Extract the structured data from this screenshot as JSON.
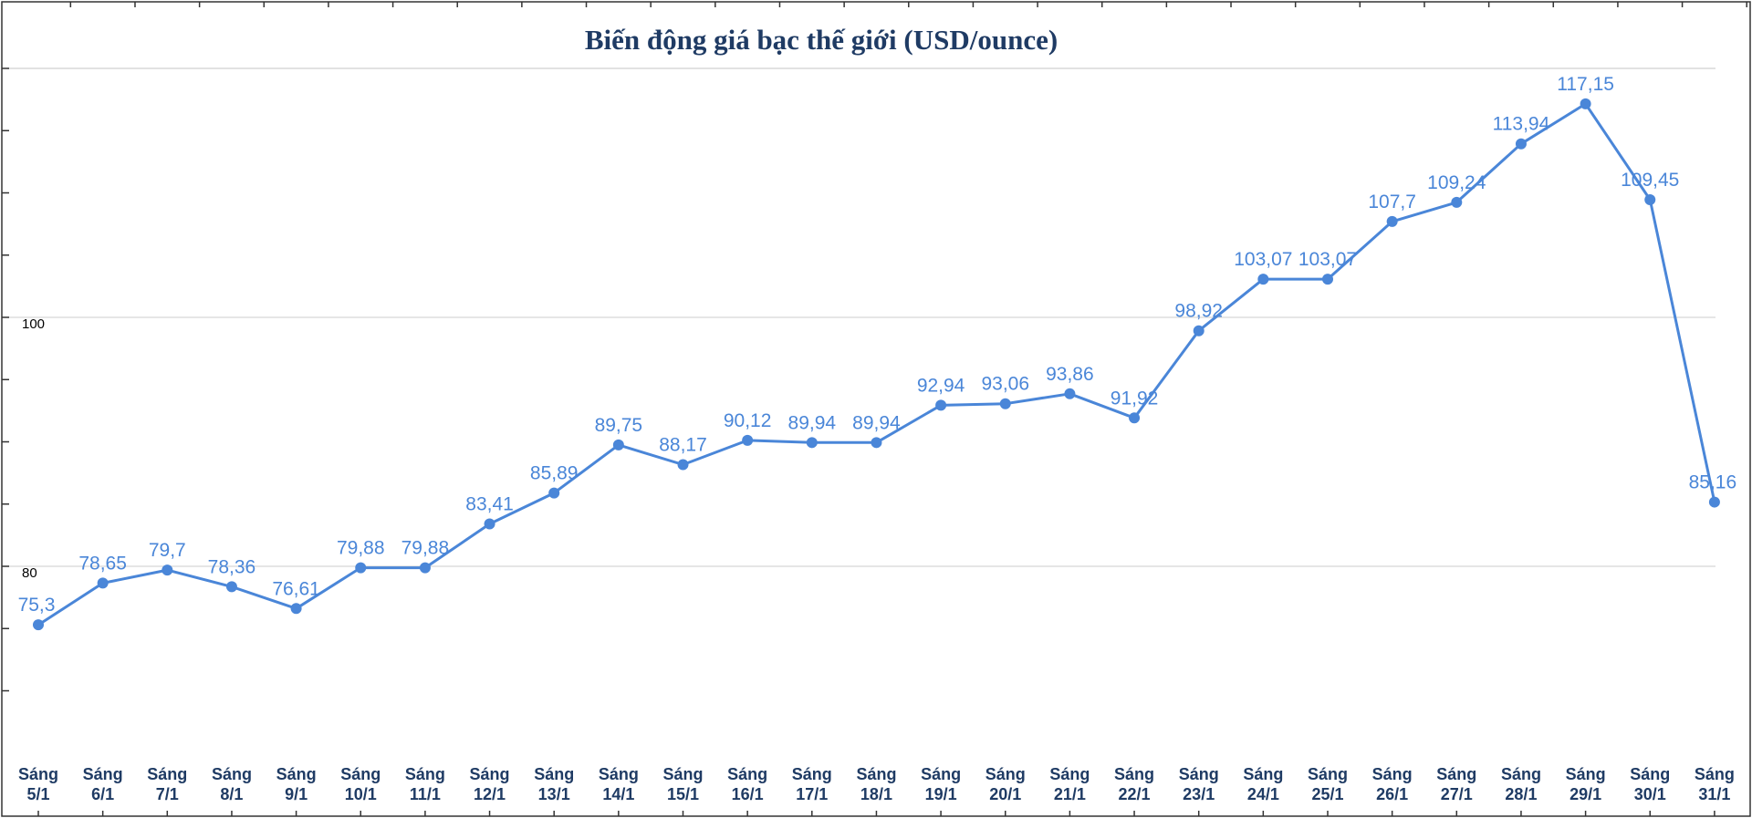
{
  "colors": {
    "series": "#4a86d8",
    "title": "#1f3b64",
    "grid": "#d6d6d6",
    "frame": "#333333"
  },
  "chart_data": {
    "type": "line",
    "title": "Biến động giá bạc thế giới (USD/ounce)",
    "xlabel": "",
    "ylabel": "",
    "ylim": [
      66.5,
      125
    ],
    "yticks_labeled": [
      80,
      100
    ],
    "grid": true,
    "legend": "none",
    "categories": [
      [
        "Sáng",
        "5/1"
      ],
      [
        "Sáng",
        "6/1"
      ],
      [
        "Sáng",
        "7/1"
      ],
      [
        "Sáng",
        "8/1"
      ],
      [
        "Sáng",
        "9/1"
      ],
      [
        "Sáng",
        "10/1"
      ],
      [
        "Sáng",
        "11/1"
      ],
      [
        "Sáng",
        "12/1"
      ],
      [
        "Sáng",
        "13/1"
      ],
      [
        "Sáng",
        "14/1"
      ],
      [
        "Sáng",
        "15/1"
      ],
      [
        "Sáng",
        "16/1"
      ],
      [
        "Sáng",
        "17/1"
      ],
      [
        "Sáng",
        "18/1"
      ],
      [
        "Sáng",
        "19/1"
      ],
      [
        "Sáng",
        "20/1"
      ],
      [
        "Sáng",
        "21/1"
      ],
      [
        "Sáng",
        "22/1"
      ],
      [
        "Sáng",
        "23/1"
      ],
      [
        "Sáng",
        "24/1"
      ],
      [
        "Sáng",
        "25/1"
      ],
      [
        "Sáng",
        "26/1"
      ],
      [
        "Sáng",
        "27/1"
      ],
      [
        "Sáng",
        "28/1"
      ],
      [
        "Sáng",
        "29/1"
      ],
      [
        "Sáng",
        "30/1"
      ],
      [
        "Sáng",
        "31/1"
      ]
    ],
    "values": [
      75.3,
      78.65,
      79.7,
      78.36,
      76.61,
      79.88,
      79.88,
      83.41,
      85.89,
      89.75,
      88.17,
      90.12,
      89.94,
      89.94,
      92.94,
      93.06,
      93.86,
      91.92,
      98.92,
      103.07,
      103.07,
      107.7,
      109.24,
      113.94,
      117.15,
      109.45,
      85.16
    ],
    "value_labels": [
      "75,3",
      "78,65",
      "79,7",
      "78,36",
      "76,61",
      "79,88",
      "79,88",
      "83,41",
      "85,89",
      "89,75",
      "88,17",
      "90,12",
      "89,94",
      "89,94",
      "92,94",
      "93,06",
      "93,86",
      "91,92",
      "98,92",
      "103,07",
      "103,07",
      "107,7",
      "109,24",
      "113,94",
      "117,15",
      "109,45",
      "85,16"
    ]
  }
}
